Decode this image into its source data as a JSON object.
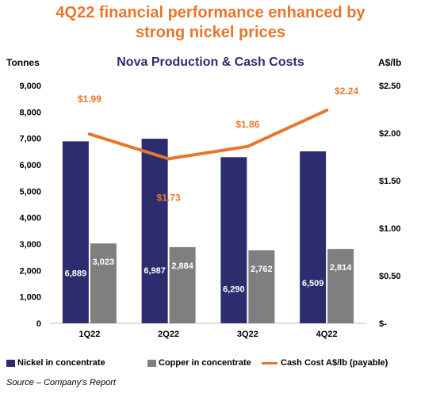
{
  "headline": {
    "line1": "4Q22 financial performance enhanced by",
    "line2": "strong nickel prices"
  },
  "source_note": "Source – Company’s Report",
  "chart_data": {
    "type": "bar",
    "title": "Nova Production & Cash Costs",
    "ylabel_left": "Tonnes",
    "ylabel_right": "A$/lb",
    "categories": [
      "1Q22",
      "2Q22",
      "3Q22",
      "4Q22"
    ],
    "ylim_left": [
      0,
      9000
    ],
    "yticks_left": [
      "0",
      "1,000",
      "2,000",
      "3,000",
      "4,000",
      "5,000",
      "6,000",
      "7,000",
      "8,000",
      "9,000"
    ],
    "ylim_right": [
      0,
      2.5
    ],
    "yticks_right": [
      "$-",
      "$0.50",
      "$1.00",
      "$1.50",
      "$2.00",
      "$2.50"
    ],
    "series": [
      {
        "name": "Nickel in concentrate",
        "kind": "bar",
        "axis": "left",
        "color": "#2b2d6e",
        "values": [
          6889,
          6987,
          6290,
          6509
        ],
        "labels": [
          "6,889",
          "6,987",
          "6,290",
          "6,509"
        ]
      },
      {
        "name": "Copper in concentrate",
        "kind": "bar",
        "axis": "left",
        "color": "#7f7f7f",
        "values": [
          3023,
          2884,
          2762,
          2814
        ],
        "labels": [
          "3,023",
          "2,884",
          "2,762",
          "2,814"
        ]
      },
      {
        "name": "Cash Cost A$/lb (payable)",
        "kind": "line",
        "axis": "right",
        "color": "#e8762d",
        "values": [
          1.99,
          1.73,
          1.86,
          2.24
        ],
        "labels": [
          "$1.99",
          "$1.73",
          "$1.86",
          "$2.24"
        ]
      }
    ],
    "grid": false,
    "legend_position": "bottom"
  }
}
